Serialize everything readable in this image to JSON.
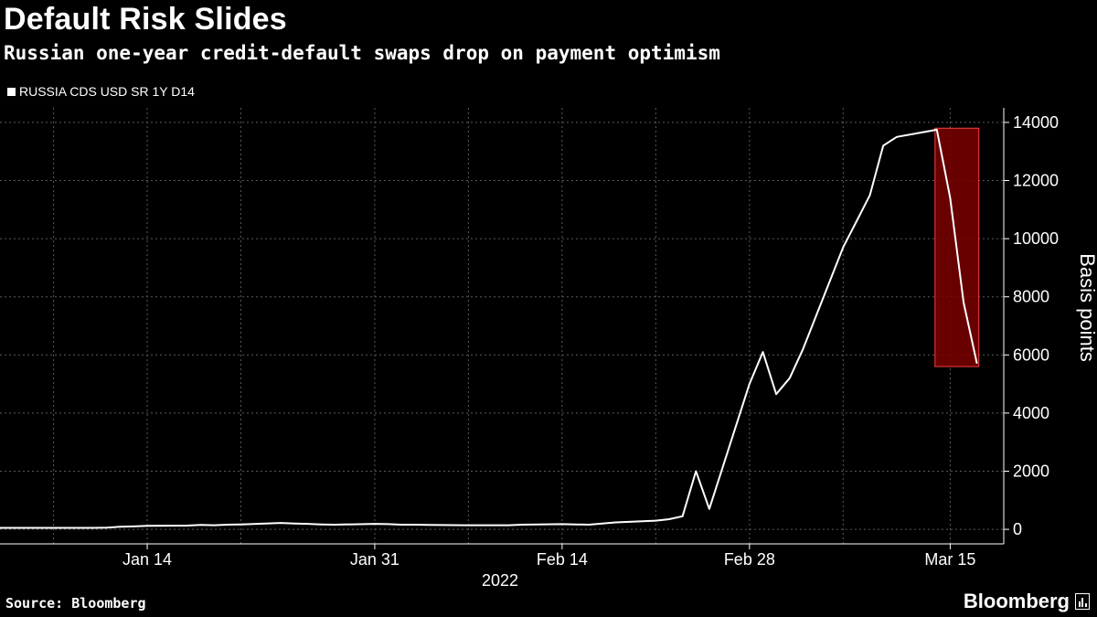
{
  "header": {
    "title": "Default Risk Slides",
    "subtitle": "Russian one-year credit-default swaps drop on payment optimism"
  },
  "footer": {
    "source": "Source: Bloomberg",
    "brand": "Bloomberg"
  },
  "colors": {
    "background": "#000000",
    "line": "#ffffff",
    "grid": "#5a5a5a",
    "highlight_fill": "#7a0000",
    "highlight_stroke": "#ff4040"
  },
  "chart_data": {
    "type": "line",
    "title": "Default Risk Slides",
    "subtitle": "Russian one-year credit-default swaps drop on payment optimism",
    "ylabel": "Basis points",
    "xlabel": "2022",
    "legend_position": "top-left",
    "grid": true,
    "ylim": [
      -500,
      14500
    ],
    "xlim": [
      "2022-01-03",
      "2022-03-19"
    ],
    "x_ticks": [
      {
        "date": "2022-01-14",
        "label": "Jan 14"
      },
      {
        "date": "2022-01-31",
        "label": "Jan 31"
      },
      {
        "date": "2022-02-14",
        "label": "Feb 14"
      },
      {
        "date": "2022-02-28",
        "label": "Feb 28"
      },
      {
        "date": "2022-03-15",
        "label": "Mar 15"
      }
    ],
    "x_grid_dates": [
      "2022-01-14",
      "2022-01-31",
      "2022-02-14",
      "2022-02-28",
      "2022-03-15"
    ],
    "x_minor_grid_dates": [
      "2022-01-07",
      "2022-01-21",
      "2022-02-07",
      "2022-02-21",
      "2022-03-07"
    ],
    "y_ticks": [
      0,
      2000,
      4000,
      6000,
      8000,
      10000,
      12000,
      14000
    ],
    "series": [
      {
        "name": "RUSSIA CDS USD SR 1Y D14",
        "color": "#ffffff",
        "x": [
          "2022-01-03",
          "2022-01-04",
          "2022-01-05",
          "2022-01-06",
          "2022-01-07",
          "2022-01-10",
          "2022-01-11",
          "2022-01-12",
          "2022-01-13",
          "2022-01-14",
          "2022-01-17",
          "2022-01-18",
          "2022-01-19",
          "2022-01-20",
          "2022-01-21",
          "2022-01-24",
          "2022-01-25",
          "2022-01-26",
          "2022-01-27",
          "2022-01-28",
          "2022-01-31",
          "2022-02-01",
          "2022-02-02",
          "2022-02-03",
          "2022-02-04",
          "2022-02-07",
          "2022-02-08",
          "2022-02-09",
          "2022-02-10",
          "2022-02-11",
          "2022-02-14",
          "2022-02-15",
          "2022-02-16",
          "2022-02-17",
          "2022-02-18",
          "2022-02-21",
          "2022-02-22",
          "2022-02-23",
          "2022-02-24",
          "2022-02-25",
          "2022-02-28",
          "2022-03-01",
          "2022-03-02",
          "2022-03-03",
          "2022-03-04",
          "2022-03-07",
          "2022-03-08",
          "2022-03-09",
          "2022-03-10",
          "2022-03-11",
          "2022-03-14",
          "2022-03-15",
          "2022-03-16",
          "2022-03-17"
        ],
        "values": [
          50,
          50,
          50,
          50,
          50,
          50,
          60,
          90,
          100,
          120,
          130,
          150,
          140,
          160,
          170,
          220,
          200,
          190,
          170,
          160,
          190,
          180,
          160,
          160,
          150,
          140,
          140,
          140,
          140,
          160,
          180,
          170,
          160,
          200,
          240,
          300,
          350,
          450,
          2000,
          700,
          5000,
          6100,
          4650,
          5200,
          6200,
          9700,
          10600,
          11500,
          13200,
          13500,
          13750,
          11400,
          7800,
          5700
        ]
      }
    ],
    "highlight": {
      "x_start": "2022-03-14",
      "x_end": "2022-03-17",
      "y_min": 5600,
      "y_max": 13800
    }
  }
}
